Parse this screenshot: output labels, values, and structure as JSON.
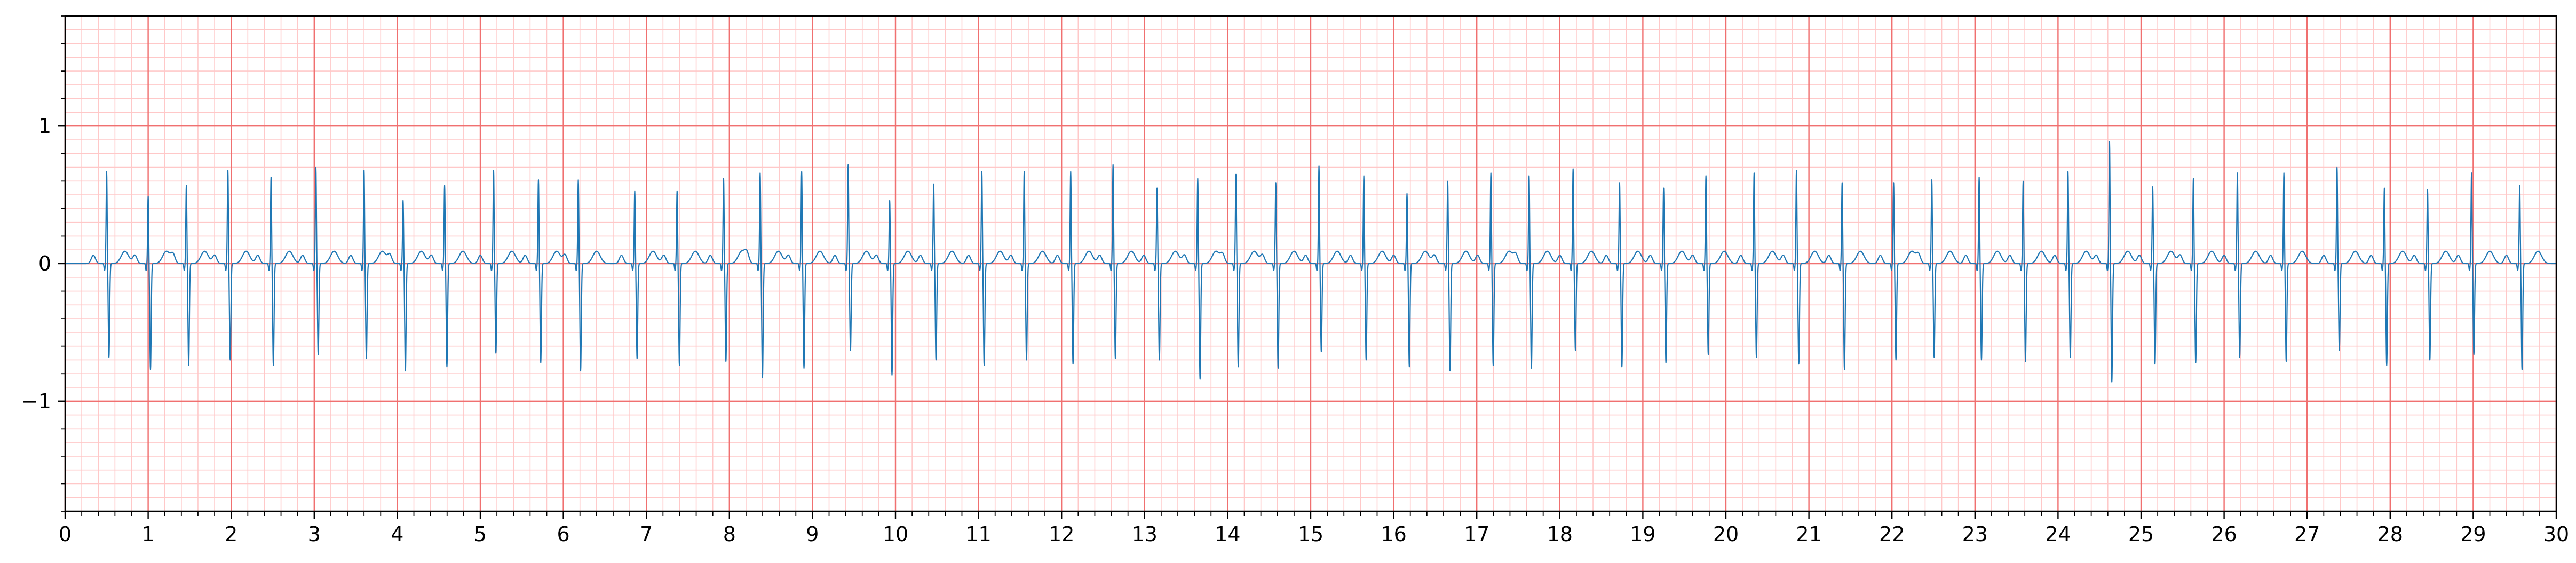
{
  "chart_data": {
    "type": "line",
    "title": "",
    "xlabel": "",
    "ylabel": "",
    "xlim": [
      0,
      30
    ],
    "ylim": [
      -1.8,
      1.8
    ],
    "x_ticks": [
      0,
      1,
      2,
      3,
      4,
      5,
      6,
      7,
      8,
      9,
      10,
      11,
      12,
      13,
      14,
      15,
      16,
      17,
      18,
      19,
      20,
      21,
      22,
      23,
      24,
      25,
      26,
      27,
      28,
      29,
      30
    ],
    "x_tick_labels": [
      "0",
      "1",
      "2",
      "3",
      "4",
      "5",
      "6",
      "7",
      "8",
      "9",
      "10",
      "11",
      "12",
      "13",
      "14",
      "15",
      "16",
      "17",
      "18",
      "19",
      "20",
      "21",
      "22",
      "23",
      "24",
      "25",
      "26",
      "27",
      "28",
      "29",
      "30"
    ],
    "y_ticks": [
      -1,
      0,
      1
    ],
    "y_tick_labels": [
      "−1",
      "0",
      "1"
    ],
    "grid": "ecg",
    "colors": {
      "major_grid": "#f07070",
      "minor_grid": "#ffc8c8",
      "trace": "#1f77b4",
      "axes": "#000000"
    },
    "series": [
      {
        "sampling_note": "beat onsets (s) with R/S amplitudes in mV",
        "beats": [
          {
            "t": 0.5,
            "r": 0.67,
            "s": -0.68
          },
          {
            "t": 1.0,
            "r": 0.49,
            "s": -0.77
          },
          {
            "t": 1.46,
            "r": 0.57,
            "s": -0.74
          },
          {
            "t": 1.96,
            "r": 0.68,
            "s": -0.7
          },
          {
            "t": 2.48,
            "r": 0.63,
            "s": -0.74
          },
          {
            "t": 3.02,
            "r": 0.7,
            "s": -0.66
          },
          {
            "t": 3.6,
            "r": 0.68,
            "s": -0.69
          },
          {
            "t": 4.07,
            "r": 0.46,
            "s": -0.78
          },
          {
            "t": 4.57,
            "r": 0.57,
            "s": -0.75
          },
          {
            "t": 5.16,
            "r": 0.68,
            "s": -0.65
          },
          {
            "t": 5.7,
            "r": 0.61,
            "s": -0.72
          },
          {
            "t": 6.18,
            "r": 0.61,
            "s": -0.78
          },
          {
            "t": 6.86,
            "r": 0.53,
            "s": -0.69
          },
          {
            "t": 7.37,
            "r": 0.53,
            "s": -0.74
          },
          {
            "t": 7.93,
            "r": 0.62,
            "s": -0.71
          },
          {
            "t": 8.37,
            "r": 0.66,
            "s": -0.83
          },
          {
            "t": 8.87,
            "r": 0.67,
            "s": -0.76
          },
          {
            "t": 9.43,
            "r": 0.72,
            "s": -0.63
          },
          {
            "t": 9.93,
            "r": 0.46,
            "s": -0.81
          },
          {
            "t": 10.46,
            "r": 0.58,
            "s": -0.7
          },
          {
            "t": 11.04,
            "r": 0.67,
            "s": -0.74
          },
          {
            "t": 11.55,
            "r": 0.67,
            "s": -0.7
          },
          {
            "t": 12.11,
            "r": 0.67,
            "s": -0.73
          },
          {
            "t": 12.62,
            "r": 0.72,
            "s": -0.69
          },
          {
            "t": 13.15,
            "r": 0.55,
            "s": -0.7
          },
          {
            "t": 13.64,
            "r": 0.62,
            "s": -0.84
          },
          {
            "t": 14.1,
            "r": 0.65,
            "s": -0.75
          },
          {
            "t": 14.58,
            "r": 0.59,
            "s": -0.76
          },
          {
            "t": 15.1,
            "r": 0.71,
            "s": -0.64
          },
          {
            "t": 15.64,
            "r": 0.64,
            "s": -0.7
          },
          {
            "t": 16.16,
            "r": 0.51,
            "s": -0.75
          },
          {
            "t": 16.65,
            "r": 0.6,
            "s": -0.78
          },
          {
            "t": 17.17,
            "r": 0.66,
            "s": -0.74
          },
          {
            "t": 17.63,
            "r": 0.64,
            "s": -0.76
          },
          {
            "t": 18.16,
            "r": 0.69,
            "s": -0.63
          },
          {
            "t": 18.72,
            "r": 0.59,
            "s": -0.75
          },
          {
            "t": 19.25,
            "r": 0.55,
            "s": -0.72
          },
          {
            "t": 19.76,
            "r": 0.64,
            "s": -0.66
          },
          {
            "t": 20.34,
            "r": 0.66,
            "s": -0.68
          },
          {
            "t": 20.85,
            "r": 0.68,
            "s": -0.73
          },
          {
            "t": 21.4,
            "r": 0.59,
            "s": -0.77
          },
          {
            "t": 22.02,
            "r": 0.59,
            "s": -0.7
          },
          {
            "t": 22.48,
            "r": 0.61,
            "s": -0.68
          },
          {
            "t": 23.05,
            "r": 0.63,
            "s": -0.7
          },
          {
            "t": 23.58,
            "r": 0.6,
            "s": -0.71
          },
          {
            "t": 24.12,
            "r": 0.67,
            "s": -0.68
          },
          {
            "t": 24.62,
            "r": 0.89,
            "s": -0.86
          },
          {
            "t": 25.14,
            "r": 0.56,
            "s": -0.73
          },
          {
            "t": 25.63,
            "r": 0.62,
            "s": -0.72
          },
          {
            "t": 26.16,
            "r": 0.66,
            "s": -0.68
          },
          {
            "t": 26.72,
            "r": 0.66,
            "s": -0.71
          },
          {
            "t": 27.36,
            "r": 0.7,
            "s": -0.63
          },
          {
            "t": 27.93,
            "r": 0.55,
            "s": -0.74
          },
          {
            "t": 28.45,
            "r": 0.54,
            "s": -0.7
          },
          {
            "t": 28.98,
            "r": 0.66,
            "s": -0.66
          },
          {
            "t": 29.56,
            "r": 0.57,
            "s": -0.77
          }
        ]
      }
    ]
  }
}
